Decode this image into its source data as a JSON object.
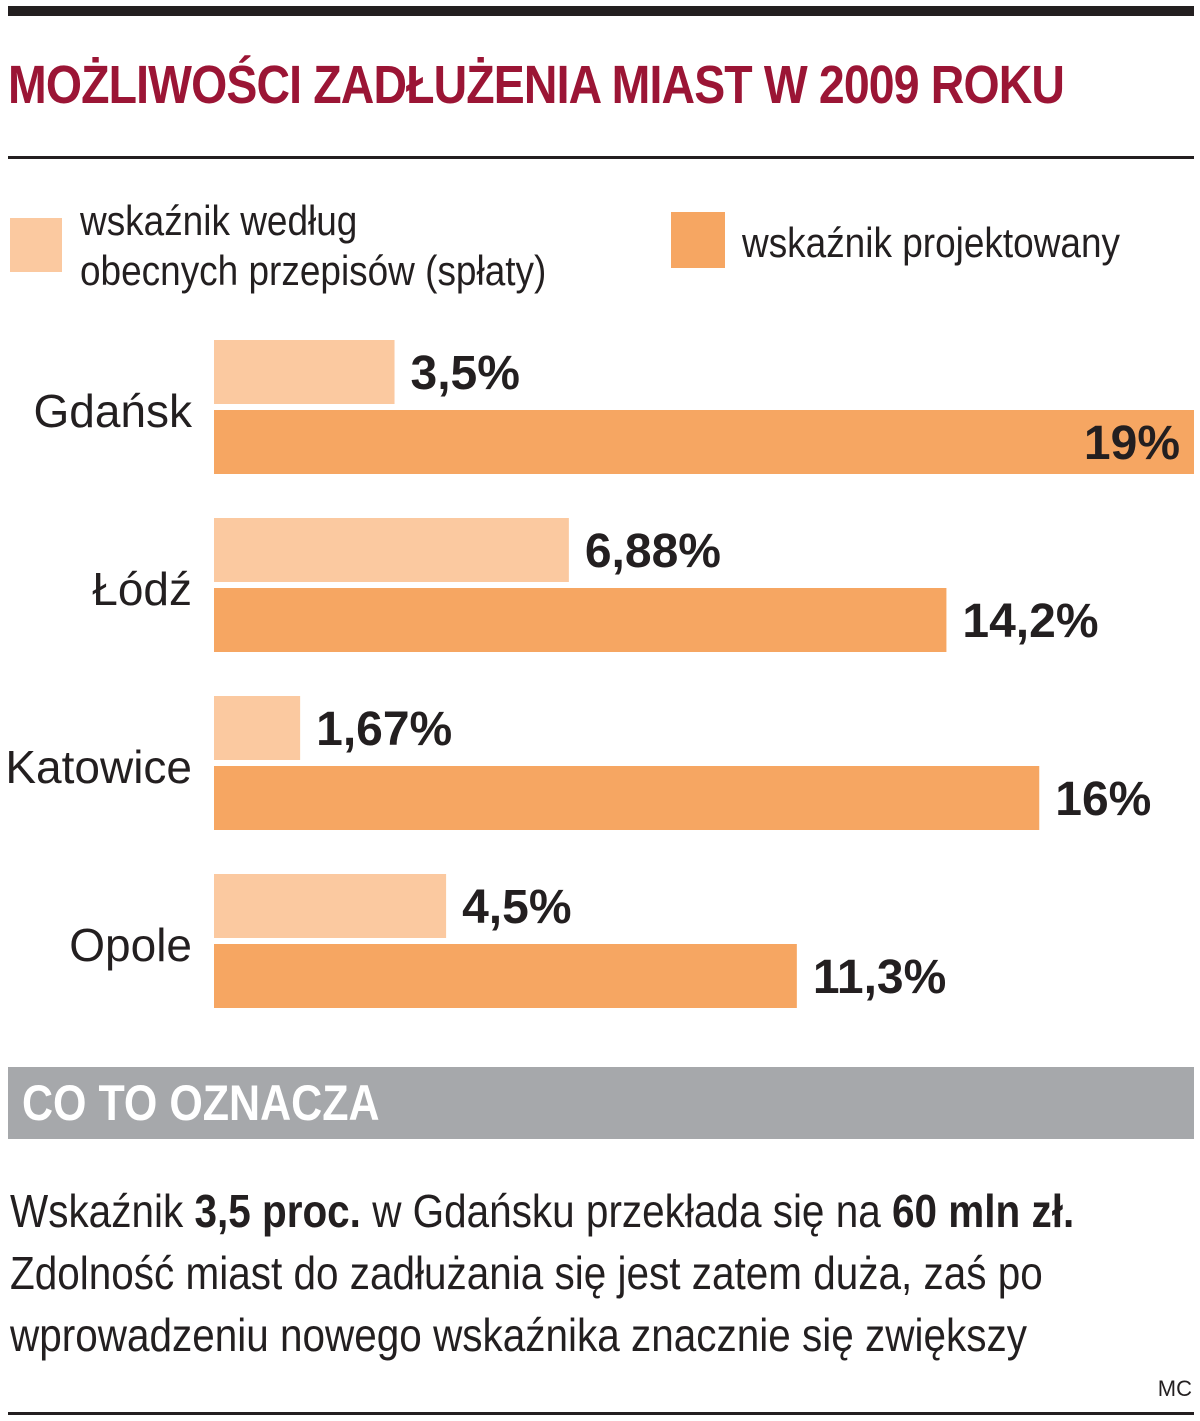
{
  "header": {
    "title": "MOŻLIWOŚCI ZADŁUŻENIA MIAST W 2009 ROKU"
  },
  "legend": {
    "current": {
      "line1": "wskaźnik według",
      "line2": "obecnych przepisów (spłaty)",
      "color": "#fbc9a0"
    },
    "projected": {
      "label": "wskaźnik projektowany",
      "color": "#f6a662"
    }
  },
  "chart_data": {
    "type": "bar",
    "orientation": "horizontal",
    "categories": [
      "Gdańsk",
      "Łódź",
      "Katowice",
      "Opole"
    ],
    "series": [
      {
        "name": "wskaźnik według obecnych przepisów (spłaty)",
        "values": [
          3.5,
          6.88,
          1.67,
          4.5
        ],
        "labels": [
          "3,5%",
          "6,88%",
          "1,67%",
          "4,5%"
        ],
        "color": "#fbc9a0"
      },
      {
        "name": "wskaźnik projektowany",
        "values": [
          19,
          14.2,
          16,
          11.3
        ],
        "labels": [
          "19%",
          "14,2%",
          "16%",
          "11,3%"
        ],
        "color": "#f6a662"
      }
    ],
    "xlim": [
      0,
      19
    ],
    "title": "MOŻLIWOŚCI ZADŁUŻENIA MIAST W 2009 ROKU",
    "xlabel": "",
    "ylabel": "",
    "grid": false
  },
  "note": {
    "heading": "CO TO OZNACZA",
    "line1": {
      "a": "Wskaźnik ",
      "b": "3,5 proc.",
      "c": " w Gdańsku przekłada się na ",
      "d": "60 mln zł."
    },
    "line2": "Zdolność miast do zadłużania się jest zatem duża, zaś po",
    "line3": "wprowadzeniu nowego wskaźnika znacznie się zwiększy"
  },
  "credit": "MC"
}
